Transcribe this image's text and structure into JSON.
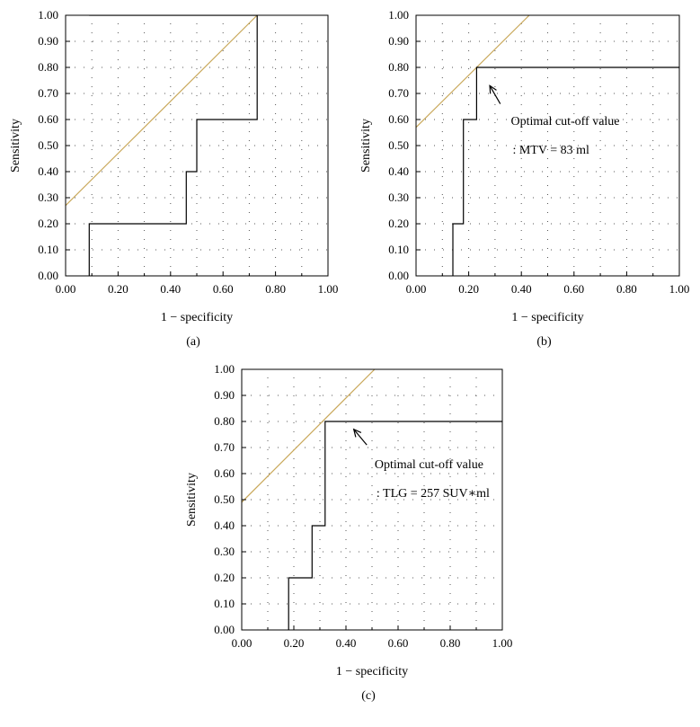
{
  "chart_data": [
    {
      "type": "line",
      "panel_label": "(a)",
      "xlabel": "1 − specificity",
      "ylabel": "Sensitivity",
      "xlim": [
        0,
        1
      ],
      "ylim": [
        0,
        1
      ],
      "grid": true,
      "xticks": [
        "0.00",
        "0.20",
        "0.40",
        "0.60",
        "0.80",
        "1.00"
      ],
      "yticks": [
        "0.00",
        "0.10",
        "0.20",
        "0.30",
        "0.40",
        "0.50",
        "0.60",
        "0.70",
        "0.80",
        "0.90",
        "1.00"
      ],
      "roc_points": [
        [
          0.09,
          0
        ],
        [
          0.09,
          0.2
        ],
        [
          0.46,
          0.2
        ],
        [
          0.46,
          0.4
        ],
        [
          0.5,
          0.4
        ],
        [
          0.5,
          0.6
        ],
        [
          0.73,
          0.6
        ],
        [
          0.73,
          1.0
        ],
        [
          0.09,
          1.0
        ]
      ],
      "reference_line": [
        [
          0,
          0.27
        ],
        [
          0.73,
          1.0
        ]
      ],
      "annotation": null
    },
    {
      "type": "line",
      "panel_label": "(b)",
      "xlabel": "1 − specificity",
      "ylabel": "Sensitivity",
      "xlim": [
        0,
        1
      ],
      "ylim": [
        0,
        1
      ],
      "grid": true,
      "xticks": [
        "0.00",
        "0.20",
        "0.40",
        "0.60",
        "0.80",
        "1.00"
      ],
      "yticks": [
        "0.00",
        "0.10",
        "0.20",
        "0.30",
        "0.40",
        "0.50",
        "0.60",
        "0.70",
        "0.80",
        "0.90",
        "1.00"
      ],
      "roc_points": [
        [
          0.14,
          0
        ],
        [
          0.14,
          0.2
        ],
        [
          0.18,
          0.2
        ],
        [
          0.18,
          0.6
        ],
        [
          0.23,
          0.6
        ],
        [
          0.23,
          0.8
        ],
        [
          1.0,
          0.8
        ]
      ],
      "reference_line": [
        [
          0,
          0.57
        ],
        [
          0.43,
          1.0
        ]
      ],
      "annotation": {
        "line1": "Optimal cut-off value",
        "line2": ": MTV = 83 ml",
        "arrow_from": [
          0.32,
          0.66
        ],
        "arrow_to": [
          0.28,
          0.73
        ],
        "text_at": [
          0.36,
          0.58
        ]
      }
    },
    {
      "type": "line",
      "panel_label": "(c)",
      "xlabel": "1 − specificity",
      "ylabel": "Sensitivity",
      "xlim": [
        0,
        1
      ],
      "ylim": [
        0,
        1
      ],
      "grid": true,
      "xticks": [
        "0.00",
        "0.20",
        "0.40",
        "0.60",
        "0.80",
        "1.00"
      ],
      "yticks": [
        "0.00",
        "0.10",
        "0.20",
        "0.30",
        "0.40",
        "0.50",
        "0.60",
        "0.70",
        "0.80",
        "0.90",
        "1.00"
      ],
      "roc_points": [
        [
          0.18,
          0
        ],
        [
          0.18,
          0.2
        ],
        [
          0.27,
          0.2
        ],
        [
          0.27,
          0.4
        ],
        [
          0.32,
          0.4
        ],
        [
          0.32,
          0.8
        ],
        [
          1.0,
          0.8
        ]
      ],
      "reference_line": [
        [
          0,
          0.49
        ],
        [
          0.51,
          1.0
        ]
      ],
      "annotation": {
        "line1": "Optimal cut-off value",
        "line2": ": TLG = 257 SUV∗ml",
        "arrow_from": [
          0.48,
          0.71
        ],
        "arrow_to": [
          0.43,
          0.77
        ],
        "text_at": [
          0.51,
          0.62
        ]
      }
    }
  ]
}
